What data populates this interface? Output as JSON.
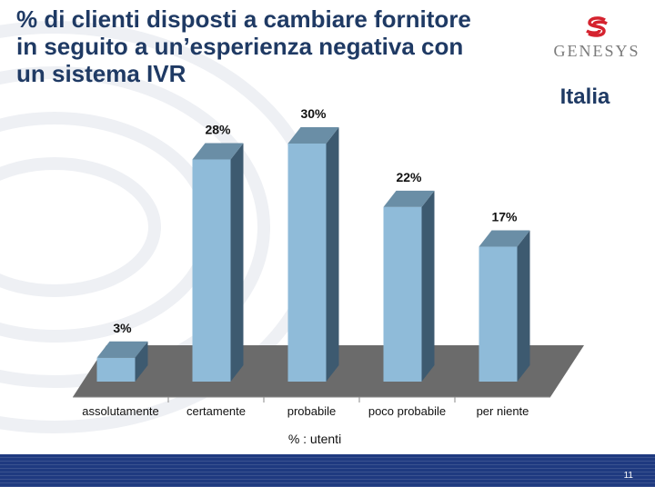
{
  "slide": {
    "title": "% di clienti disposti a cambiare fornitore\nin seguito a un’esperienza negativa con\nun sistema IVR",
    "country": "Italia",
    "logo_text": "GENESYS",
    "page_number": "11"
  },
  "colors": {
    "bar_front": "#8fbbd9",
    "bar_side": "#3d5a70",
    "bar_top": "#6a8ea6",
    "floor": "#6b6b6b",
    "title": "#1f3a64",
    "logo_red": "#d5232f"
  },
  "chart_data": {
    "type": "bar",
    "categories": [
      "assolutamente",
      "certamente",
      "probabile",
      "poco probabile",
      "per niente"
    ],
    "values": [
      3,
      28,
      30,
      22,
      17
    ],
    "value_labels": [
      "3%",
      "28%",
      "30%",
      "22%",
      "17%"
    ],
    "xlabel": "% : utenti",
    "ylim": [
      0,
      30
    ],
    "grid": false,
    "three_d": true
  }
}
